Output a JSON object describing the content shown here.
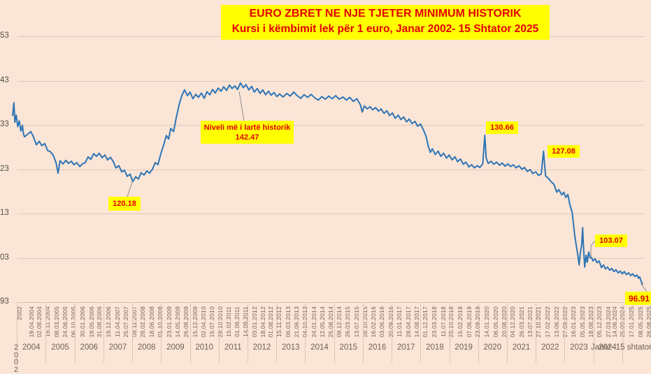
{
  "title": {
    "line1": "EURO ZBRET NE NJE TJETER MINIMUM HISTORIK",
    "line2": "Kursi i këmbimit lek për 1 euro, Janar 2002- 15 Shtator 2025"
  },
  "colors": {
    "background": "#fbe5d6",
    "line": "#2e75b6",
    "callout_bg": "#ffff00",
    "callout_text": "#e30000",
    "gridline": "#ddcabc",
    "leader": "#8c8c8c"
  },
  "chart_data": {
    "type": "line",
    "title": "EURO ZBRET NE NJE TJETER MINIMUM HISTORIK",
    "subtitle": "Kursi i këmbimit lek për 1 euro, Janar 2002- 15 Shtator 2025",
    "series_name": "Kursi lek per 1 euro",
    "x_unit": "decimal_year",
    "xlabel": "",
    "ylabel": "",
    "ylim": [
      93,
      153
    ],
    "grid": "horizontal",
    "legend": "none",
    "y_axis": {
      "tick_labels": [
        "53",
        "43",
        "33",
        "23",
        "13",
        "03",
        "93"
      ],
      "tick_values": [
        153,
        143,
        133,
        123,
        113,
        103,
        93
      ]
    },
    "x_axis": {
      "first_band_label": "2002",
      "stacked_year_label": "2002",
      "date_labels": [
        "2002",
        "19.04.2004",
        "02.08.2004",
        "16.11.2004",
        "08.03.2005",
        "24.06.2005",
        "06.10.2005",
        "30.01.2006",
        "19.05.2006",
        "31.08.2006",
        "19.12.2006",
        "11.04.2007",
        "25.07.2007",
        "08.11.2007",
        "28.02.2008",
        "18.06.2008",
        "01.10.2008",
        "23.01.2009",
        "14.05.2009",
        "26.08.2009",
        "15.12.2009",
        "02.04.2010",
        "15.07.2010",
        "29.10.2010",
        "15.02.2011",
        "01.06.2011",
        "14.09.2011",
        "03.01.2012",
        "18.04.2012",
        "01.08.2012",
        "15.11.2012",
        "06.03.2013",
        "21.06.2013",
        "04.10.2013",
        "24.01.2014",
        "12.05.2014",
        "25.08.2014",
        "09.12.2014",
        "26.03.2015",
        "13.07.2015",
        "28.10.2015",
        "16.02.2016",
        "03.06.2016",
        "20.09.2016",
        "11.01.2017",
        "28.04.2017",
        "14.08.2017",
        "01.12.2017",
        "23.03.2018",
        "11.07.2018",
        "25.10.2018",
        "15.02.2019",
        "07.06.2019",
        "23.09.2019",
        "14.01.2020",
        "06.05.2020",
        "20.08.2020",
        "04.12.2020",
        "26.03.2021",
        "13.07.2021",
        "27.10.2021",
        "17.02.2022",
        "13.06.2022",
        "27.09.2022",
        "16.01.2023",
        "05.05.2023",
        "18.08.2023",
        "05.12.2023",
        "27.03.2024",
        "14.06.2024",
        "25.09.2024",
        "17.01.2025",
        "08.05.2025",
        "26.08.2025"
      ],
      "year_labels": [
        "2004",
        "2005",
        "2006",
        "2007",
        "2008",
        "2009",
        "2010",
        "2011",
        "2012",
        "2013",
        "2014",
        "2015",
        "2016",
        "2017",
        "2018",
        "2019",
        "2020",
        "2021",
        "2022",
        "2023"
      ],
      "last_year_label": "2024",
      "period_label": "Janar- 15 shtator"
    },
    "callouts": [
      {
        "id": "record-high",
        "lines": [
          "Niveli më i lartë historik",
          "142.47"
        ],
        "value": 142.47
      },
      {
        "id": "low-2008",
        "lines": [
          "120.18"
        ],
        "value": 120.18
      },
      {
        "id": "covid-spike",
        "lines": [
          "130.66"
        ],
        "value": 130.66
      },
      {
        "id": "war-spike",
        "lines": [
          "127.08"
        ],
        "value": 127.08
      },
      {
        "id": "level-2023",
        "lines": [
          "103.07"
        ],
        "value": 103.07
      },
      {
        "id": "current-min",
        "lines": [
          "96.91"
        ],
        "value": 96.91
      }
    ],
    "points": [
      [
        2002.0,
        135.0
      ],
      [
        2002.25,
        138.0
      ],
      [
        2002.45,
        133.6
      ],
      [
        2002.7,
        135.2
      ],
      [
        2003.0,
        132.6
      ],
      [
        2003.3,
        133.9
      ],
      [
        2003.6,
        131.6
      ],
      [
        2003.9,
        132.9
      ],
      [
        2004.1,
        131.0
      ],
      [
        2004.3,
        130.3
      ],
      [
        2004.52,
        131.5
      ],
      [
        2004.61,
        130.3
      ],
      [
        2004.71,
        128.5
      ],
      [
        2004.81,
        129.3
      ],
      [
        2004.9,
        128.3
      ],
      [
        2005.0,
        128.8
      ],
      [
        2005.1,
        127.2
      ],
      [
        2005.19,
        127.0
      ],
      [
        2005.29,
        126.2
      ],
      [
        2005.39,
        124.5
      ],
      [
        2005.46,
        122.1
      ],
      [
        2005.53,
        124.9
      ],
      [
        2005.63,
        124.2
      ],
      [
        2005.73,
        125.0
      ],
      [
        2005.82,
        124.3
      ],
      [
        2005.92,
        124.8
      ],
      [
        2006.01,
        124.0
      ],
      [
        2006.11,
        124.5
      ],
      [
        2006.21,
        123.6
      ],
      [
        2006.3,
        124.2
      ],
      [
        2006.4,
        124.5
      ],
      [
        2006.5,
        125.8
      ],
      [
        2006.59,
        125.2
      ],
      [
        2006.69,
        126.5
      ],
      [
        2006.79,
        125.9
      ],
      [
        2006.88,
        126.6
      ],
      [
        2006.98,
        125.6
      ],
      [
        2007.08,
        126.2
      ],
      [
        2007.17,
        125.1
      ],
      [
        2007.27,
        125.7
      ],
      [
        2007.37,
        124.7
      ],
      [
        2007.46,
        123.3
      ],
      [
        2007.56,
        123.8
      ],
      [
        2007.66,
        122.4
      ],
      [
        2007.75,
        122.8
      ],
      [
        2007.85,
        121.4
      ],
      [
        2007.95,
        121.9
      ],
      [
        2008.04,
        120.18
      ],
      [
        2008.14,
        121.3
      ],
      [
        2008.24,
        120.8
      ],
      [
        2008.33,
        122.2
      ],
      [
        2008.43,
        121.7
      ],
      [
        2008.53,
        122.6
      ],
      [
        2008.62,
        122.1
      ],
      [
        2008.72,
        123.0
      ],
      [
        2008.82,
        124.5
      ],
      [
        2008.91,
        124.0
      ],
      [
        2009.01,
        126.5
      ],
      [
        2009.11,
        128.5
      ],
      [
        2009.2,
        130.6
      ],
      [
        2009.28,
        129.8
      ],
      [
        2009.35,
        132.2
      ],
      [
        2009.45,
        131.5
      ],
      [
        2009.54,
        134.5
      ],
      [
        2009.64,
        137.5
      ],
      [
        2009.73,
        139.5
      ],
      [
        2009.83,
        140.9
      ],
      [
        2009.93,
        139.6
      ],
      [
        2010.02,
        140.4
      ],
      [
        2010.12,
        138.9
      ],
      [
        2010.22,
        139.9
      ],
      [
        2010.31,
        139.2
      ],
      [
        2010.41,
        140.2
      ],
      [
        2010.51,
        139.0
      ],
      [
        2010.6,
        140.5
      ],
      [
        2010.7,
        139.8
      ],
      [
        2010.8,
        141.0
      ],
      [
        2010.89,
        140.2
      ],
      [
        2010.99,
        141.3
      ],
      [
        2011.09,
        140.6
      ],
      [
        2011.18,
        141.6
      ],
      [
        2011.28,
        140.8
      ],
      [
        2011.38,
        142.0
      ],
      [
        2011.47,
        141.2
      ],
      [
        2011.57,
        141.8
      ],
      [
        2011.66,
        141.0
      ],
      [
        2011.76,
        142.47
      ],
      [
        2011.86,
        141.4
      ],
      [
        2011.95,
        142.1
      ],
      [
        2012.05,
        140.9
      ],
      [
        2012.15,
        141.7
      ],
      [
        2012.24,
        140.4
      ],
      [
        2012.34,
        141.2
      ],
      [
        2012.44,
        140.1
      ],
      [
        2012.53,
        140.9
      ],
      [
        2012.63,
        139.8
      ],
      [
        2012.73,
        140.6
      ],
      [
        2012.82,
        139.7
      ],
      [
        2012.92,
        140.3
      ],
      [
        2013.02,
        139.4
      ],
      [
        2013.11,
        140.0
      ],
      [
        2013.23,
        139.3
      ],
      [
        2013.36,
        140.1
      ],
      [
        2013.48,
        139.5
      ],
      [
        2013.6,
        140.4
      ],
      [
        2013.72,
        139.6
      ],
      [
        2013.84,
        139.0
      ],
      [
        2013.96,
        139.8
      ],
      [
        2014.08,
        139.2
      ],
      [
        2014.2,
        139.9
      ],
      [
        2014.33,
        139.1
      ],
      [
        2014.45,
        138.6
      ],
      [
        2014.57,
        139.4
      ],
      [
        2014.69,
        138.8
      ],
      [
        2014.81,
        139.5
      ],
      [
        2014.93,
        138.9
      ],
      [
        2015.05,
        139.6
      ],
      [
        2015.17,
        138.8
      ],
      [
        2015.3,
        139.3
      ],
      [
        2015.42,
        138.6
      ],
      [
        2015.54,
        139.2
      ],
      [
        2015.66,
        138.3
      ],
      [
        2015.78,
        138.9
      ],
      [
        2015.9,
        137.6
      ],
      [
        2015.97,
        135.9
      ],
      [
        2016.04,
        137.3
      ],
      [
        2016.14,
        136.6
      ],
      [
        2016.24,
        137.1
      ],
      [
        2016.33,
        136.4
      ],
      [
        2016.43,
        136.9
      ],
      [
        2016.53,
        136.1
      ],
      [
        2016.62,
        136.6
      ],
      [
        2016.72,
        135.6
      ],
      [
        2016.82,
        136.2
      ],
      [
        2016.91,
        135.1
      ],
      [
        2017.01,
        135.7
      ],
      [
        2017.11,
        134.5
      ],
      [
        2017.21,
        135.2
      ],
      [
        2017.3,
        134.2
      ],
      [
        2017.4,
        134.8
      ],
      [
        2017.5,
        133.7
      ],
      [
        2017.59,
        134.3
      ],
      [
        2017.69,
        133.3
      ],
      [
        2017.79,
        133.8
      ],
      [
        2017.88,
        132.7
      ],
      [
        2017.98,
        133.2
      ],
      [
        2018.08,
        131.9
      ],
      [
        2018.17,
        130.5
      ],
      [
        2018.25,
        128.2
      ],
      [
        2018.32,
        126.8
      ],
      [
        2018.39,
        127.6
      ],
      [
        2018.49,
        126.3
      ],
      [
        2018.59,
        127.1
      ],
      [
        2018.68,
        125.9
      ],
      [
        2018.78,
        126.6
      ],
      [
        2018.88,
        125.5
      ],
      [
        2018.97,
        126.2
      ],
      [
        2019.07,
        125.1
      ],
      [
        2019.17,
        125.8
      ],
      [
        2019.26,
        124.7
      ],
      [
        2019.36,
        125.3
      ],
      [
        2019.46,
        124.1
      ],
      [
        2019.55,
        124.6
      ],
      [
        2019.65,
        123.5
      ],
      [
        2019.75,
        124.0
      ],
      [
        2019.84,
        123.3
      ],
      [
        2019.94,
        123.8
      ],
      [
        2020.03,
        123.4
      ],
      [
        2020.13,
        124.2
      ],
      [
        2020.2,
        130.66
      ],
      [
        2020.25,
        125.5
      ],
      [
        2020.32,
        124.3
      ],
      [
        2020.42,
        124.8
      ],
      [
        2020.51,
        124.1
      ],
      [
        2020.61,
        124.6
      ],
      [
        2020.71,
        123.9
      ],
      [
        2020.8,
        124.4
      ],
      [
        2020.9,
        123.7
      ],
      [
        2021.0,
        124.2
      ],
      [
        2021.09,
        123.6
      ],
      [
        2021.19,
        124.0
      ],
      [
        2021.28,
        123.3
      ],
      [
        2021.38,
        123.8
      ],
      [
        2021.48,
        123.0
      ],
      [
        2021.57,
        123.4
      ],
      [
        2021.67,
        122.5
      ],
      [
        2021.77,
        122.9
      ],
      [
        2021.86,
        122.0
      ],
      [
        2021.96,
        122.4
      ],
      [
        2022.06,
        121.6
      ],
      [
        2022.15,
        121.9
      ],
      [
        2022.23,
        127.08
      ],
      [
        2022.3,
        121.5
      ],
      [
        2022.4,
        120.9
      ],
      [
        2022.49,
        120.2
      ],
      [
        2022.59,
        119.6
      ],
      [
        2022.69,
        117.8
      ],
      [
        2022.76,
        118.4
      ],
      [
        2022.86,
        117.2
      ],
      [
        2022.93,
        117.8
      ],
      [
        2023.0,
        116.6
      ],
      [
        2023.07,
        117.3
      ],
      [
        2023.14,
        115.0
      ],
      [
        2023.22,
        113.2
      ],
      [
        2023.26,
        111.0
      ],
      [
        2023.31,
        108.0
      ],
      [
        2023.36,
        105.8
      ],
      [
        2023.41,
        103.8
      ],
      [
        2023.46,
        101.4
      ],
      [
        2023.5,
        104.0
      ],
      [
        2023.55,
        106.0
      ],
      [
        2023.58,
        109.8
      ],
      [
        2023.6,
        107.0
      ],
      [
        2023.65,
        100.9
      ],
      [
        2023.7,
        103.6
      ],
      [
        2023.74,
        102.0
      ],
      [
        2023.79,
        104.3
      ],
      [
        2023.84,
        103.0
      ],
      [
        2023.89,
        103.07
      ],
      [
        2023.94,
        102.3
      ],
      [
        2024.01,
        102.8
      ],
      [
        2024.08,
        101.9
      ],
      [
        2024.15,
        102.3
      ],
      [
        2024.23,
        100.8
      ],
      [
        2024.3,
        101.4
      ],
      [
        2024.37,
        100.5
      ],
      [
        2024.44,
        100.9
      ],
      [
        2024.52,
        100.2
      ],
      [
        2024.59,
        100.6
      ],
      [
        2024.66,
        99.9
      ],
      [
        2024.73,
        100.3
      ],
      [
        2024.81,
        99.6
      ],
      [
        2024.88,
        100.0
      ],
      [
        2024.95,
        99.4
      ],
      [
        2025.02,
        99.9
      ],
      [
        2025.09,
        99.2
      ],
      [
        2025.17,
        99.6
      ],
      [
        2025.24,
        99.0
      ],
      [
        2025.31,
        99.4
      ],
      [
        2025.38,
        98.8
      ],
      [
        2025.46,
        99.1
      ],
      [
        2025.51,
        98.4
      ],
      [
        2025.55,
        98.7
      ],
      [
        2025.6,
        97.8
      ],
      [
        2025.65,
        96.91
      ]
    ]
  }
}
